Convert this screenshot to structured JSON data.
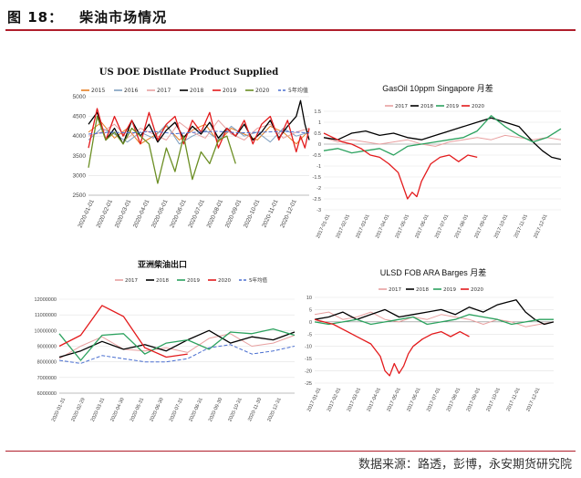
{
  "figure": {
    "number": "图 18：",
    "title": "柴油市场情况",
    "source": "数据来源：路透，彭博，永安期货研究院"
  },
  "chart_data": [
    {
      "type": "line",
      "title": "US DOE Distllate Product Supplied",
      "ylim": [
        2500,
        5000
      ],
      "yticks": [
        2500,
        3000,
        3500,
        4000,
        4500,
        5000
      ],
      "x_ticks": [
        "2020-01-01",
        "2020-02-01",
        "2020-03-01",
        "2020-04-01",
        "2020-05-01",
        "2020-06-01",
        "2020-07-01",
        "2020-08-01",
        "2020-09-01",
        "2020-10-01",
        "2020-11-01",
        "2020-12-01"
      ],
      "x_range": [
        1,
        52
      ],
      "grid": true,
      "legend": "top",
      "series": [
        {
          "name": "2015",
          "color": "#e67e22",
          "dash": false,
          "x": [
            1,
            4,
            7,
            10,
            13,
            16,
            19,
            22,
            25,
            28,
            31,
            34,
            37,
            40,
            43,
            46,
            49,
            52
          ],
          "values": [
            4100,
            4350,
            3950,
            4200,
            3800,
            4000,
            4250,
            3900,
            4150,
            4300,
            3850,
            4200,
            4050,
            3900,
            4250,
            4100,
            3800,
            4150
          ]
        },
        {
          "name": "2016",
          "color": "#7f9fbf",
          "dash": false,
          "x": [
            1,
            4,
            7,
            10,
            13,
            16,
            19,
            22,
            25,
            28,
            31,
            34,
            37,
            40,
            43,
            46,
            49,
            52
          ],
          "values": [
            3900,
            4200,
            4050,
            3850,
            4100,
            3950,
            4300,
            3800,
            4000,
            4150,
            3900,
            4250,
            4000,
            4100,
            3850,
            4200,
            4000,
            4100
          ]
        },
        {
          "name": "2017",
          "color": "#e8a0a0",
          "dash": false,
          "x": [
            1,
            4,
            7,
            10,
            13,
            16,
            19,
            22,
            25,
            28,
            31,
            34,
            37,
            40,
            43,
            46,
            49,
            52
          ],
          "values": [
            4000,
            4100,
            4300,
            3950,
            4200,
            4050,
            3900,
            4350,
            4100,
            3950,
            4400,
            4050,
            3900,
            4200,
            4300,
            3950,
            4100,
            4200
          ]
        },
        {
          "name": "2018",
          "color": "#000000",
          "dash": false,
          "x": [
            1,
            3,
            5,
            7,
            9,
            11,
            13,
            15,
            17,
            19,
            21,
            23,
            25,
            27,
            29,
            31,
            33,
            35,
            37,
            39,
            41,
            43,
            45,
            47,
            49,
            50,
            51,
            52
          ],
          "values": [
            4300,
            4600,
            3900,
            4200,
            3800,
            4400,
            4000,
            4300,
            3850,
            4150,
            4350,
            3950,
            4250,
            4050,
            4350,
            3950,
            4200,
            4000,
            4300,
            3900,
            4100,
            4400,
            3950,
            4250,
            4500,
            4900,
            4300,
            3900
          ]
        },
        {
          "name": "2019",
          "color": "#e31a1c",
          "dash": false,
          "x": [
            1,
            3,
            5,
            7,
            9,
            11,
            13,
            15,
            17,
            19,
            21,
            23,
            25,
            27,
            29,
            31,
            33,
            35,
            37,
            39,
            41,
            43,
            45,
            47,
            49,
            50,
            51,
            52
          ],
          "values": [
            3700,
            4700,
            3900,
            4500,
            4000,
            4400,
            3800,
            4600,
            3900,
            4300,
            4500,
            3800,
            4400,
            4100,
            4600,
            3700,
            4200,
            4000,
            4400,
            3800,
            4300,
            4500,
            3900,
            4400,
            3600,
            4000,
            3700,
            4200
          ]
        },
        {
          "name": "2020",
          "color": "#6b8e23",
          "dash": false,
          "x": [
            1,
            3,
            5,
            7,
            9,
            11,
            13,
            15,
            17,
            19,
            21,
            23,
            25,
            27,
            29,
            31,
            33,
            35
          ],
          "values": [
            3200,
            4500,
            3900,
            4100,
            3800,
            4200,
            4000,
            3800,
            2800,
            3700,
            3100,
            4000,
            2900,
            3600,
            3300,
            3900,
            4000,
            3300
          ]
        },
        {
          "name": "5年均值",
          "color": "#4a6fd0",
          "dash": true,
          "x": [
            1,
            6,
            11,
            16,
            21,
            26,
            31,
            36,
            41,
            46,
            52
          ],
          "values": [
            4050,
            4100,
            4080,
            4120,
            4060,
            4100,
            4120,
            4080,
            4100,
            4120,
            4080
          ]
        }
      ]
    },
    {
      "type": "line",
      "title_en": "GasOil 10ppm Singapore",
      "title_cn": "月差",
      "ylim": [
        -3,
        1.5
      ],
      "yticks": [
        -3,
        -2.5,
        -2,
        -1.5,
        -1,
        -0.5,
        0,
        0.5,
        1,
        1.5
      ],
      "x_ticks": [
        "2017-01-01",
        "2017-02-01",
        "2017-03-01",
        "2017-04-01",
        "2017-05-01",
        "2017-06-01",
        "2017-07-01",
        "2017-08-01",
        "2017-09-01",
        "2017-10-01",
        "2017-11-01",
        "2017-12-01"
      ],
      "x_range": [
        1,
        52
      ],
      "grid": true,
      "legend": "top",
      "series": [
        {
          "name": "2017",
          "color": "#e8a0a0",
          "x": [
            1,
            4,
            7,
            10,
            13,
            16,
            19,
            22,
            25,
            28,
            31,
            34,
            37,
            40,
            43,
            46,
            49,
            52
          ],
          "values": [
            0.3,
            0.1,
            0.2,
            0.1,
            0.0,
            0.1,
            0.2,
            0.0,
            -0.1,
            0.1,
            0.2,
            0.3,
            0.2,
            0.4,
            0.3,
            0.2,
            0.3,
            0.2
          ]
        },
        {
          "name": "2018",
          "color": "#000000",
          "x": [
            1,
            4,
            7,
            10,
            13,
            16,
            19,
            22,
            25,
            28,
            31,
            34,
            37,
            40,
            43,
            46,
            48,
            50,
            52
          ],
          "values": [
            0.3,
            0.2,
            0.5,
            0.6,
            0.4,
            0.5,
            0.3,
            0.2,
            0.4,
            0.6,
            0.8,
            1.0,
            1.2,
            1.0,
            0.8,
            0.1,
            -0.3,
            -0.6,
            -0.7
          ]
        },
        {
          "name": "2019",
          "color": "#2ca25f",
          "x": [
            1,
            4,
            7,
            10,
            13,
            16,
            19,
            22,
            25,
            28,
            31,
            34,
            37,
            40,
            43,
            46,
            49,
            52
          ],
          "values": [
            -0.3,
            -0.2,
            -0.4,
            -0.3,
            -0.2,
            -0.5,
            -0.1,
            0.0,
            0.1,
            0.2,
            0.3,
            0.6,
            1.3,
            0.8,
            0.4,
            0.1,
            0.3,
            0.7
          ]
        },
        {
          "name": "2020",
          "color": "#e31a1c",
          "x": [
            1,
            3,
            5,
            7,
            9,
            11,
            13,
            15,
            17,
            19,
            20,
            21,
            22,
            23,
            24,
            26,
            28,
            30,
            32,
            34
          ],
          "values": [
            0.5,
            0.3,
            0.1,
            0.0,
            -0.2,
            -0.5,
            -0.6,
            -0.9,
            -1.3,
            -2.5,
            -2.2,
            -2.4,
            -1.7,
            -1.3,
            -0.9,
            -0.6,
            -0.5,
            -0.8,
            -0.5,
            -0.6
          ]
        }
      ]
    },
    {
      "type": "line",
      "title": "亚洲柴油出口",
      "ylim": [
        6000000,
        12000000
      ],
      "yticks": [
        6000000,
        7000000,
        8000000,
        9000000,
        10000000,
        11000000,
        12000000
      ],
      "x_ticks": [
        "2020-01-31",
        "2020-02-29",
        "2020-03-31",
        "2020-04-30",
        "2020-05-31",
        "2020-06-30",
        "2020-07-31",
        "2020-08-31",
        "2020-09-30",
        "2020-10-31",
        "2020-11-30",
        "2020-12-31"
      ],
      "x_range": [
        1,
        12
      ],
      "grid": true,
      "legend": "top",
      "series": [
        {
          "name": "2017",
          "color": "#e8a0a0",
          "dash": false,
          "x": [
            1,
            2,
            3,
            4,
            5,
            6,
            7,
            8,
            9,
            10,
            11,
            12
          ],
          "values": [
            8200000,
            9000000,
            9600000,
            8800000,
            8700000,
            8900000,
            8600000,
            9500000,
            9800000,
            9000000,
            9200000,
            9700000
          ]
        },
        {
          "name": "2018",
          "color": "#000000",
          "dash": false,
          "x": [
            1,
            2,
            3,
            4,
            5,
            6,
            7,
            8,
            9,
            10,
            11,
            12
          ],
          "values": [
            8300000,
            8700000,
            9300000,
            8800000,
            9100000,
            8700000,
            9400000,
            10000000,
            9200000,
            9600000,
            9400000,
            9900000
          ]
        },
        {
          "name": "2019",
          "color": "#2ca25f",
          "dash": false,
          "x": [
            1,
            2,
            3,
            4,
            5,
            6,
            7,
            8,
            9,
            10,
            11,
            12
          ],
          "values": [
            9800000,
            8100000,
            9700000,
            9800000,
            8500000,
            9200000,
            9400000,
            8800000,
            9900000,
            9800000,
            10100000,
            9700000
          ]
        },
        {
          "name": "2020",
          "color": "#e31a1c",
          "dash": false,
          "x": [
            1,
            2,
            3,
            4,
            5,
            6,
            7
          ],
          "values": [
            9000000,
            9700000,
            11600000,
            10900000,
            8900000,
            8300000,
            8500000
          ]
        },
        {
          "name": "5年均值",
          "color": "#4a6fd0",
          "dash": true,
          "x": [
            1,
            2,
            3,
            4,
            5,
            6,
            7,
            8,
            9,
            10,
            11,
            12
          ],
          "values": [
            8100000,
            7900000,
            8400000,
            8200000,
            8000000,
            8000000,
            8200000,
            8900000,
            9100000,
            8500000,
            8700000,
            9000000
          ]
        }
      ]
    },
    {
      "type": "line",
      "title_en": "ULSD FOB ARA Barges",
      "title_cn": "月差",
      "ylim": [
        -25,
        10
      ],
      "yticks": [
        -25,
        -20,
        -15,
        -10,
        -5,
        0,
        5,
        10
      ],
      "x_ticks": [
        "2017-01-01",
        "2017-02-01",
        "2017-03-01",
        "2017-04-01",
        "2017-05-01",
        "2017-06-01",
        "2017-07-01",
        "2017-08-01",
        "2017-09-01",
        "2017-10-01",
        "2017-11-01",
        "2017-12-01"
      ],
      "x_range": [
        1,
        52
      ],
      "grid": true,
      "legend": "top",
      "series": [
        {
          "name": "2017",
          "color": "#e8a0a0",
          "x": [
            1,
            4,
            7,
            10,
            13,
            16,
            19,
            22,
            25,
            28,
            31,
            34,
            37,
            40,
            43,
            46,
            49,
            52
          ],
          "values": [
            3,
            4,
            1,
            2,
            4,
            1,
            0,
            2,
            1,
            3,
            2,
            1,
            -1,
            1,
            0,
            -2,
            -1,
            0
          ]
        },
        {
          "name": "2018",
          "color": "#000000",
          "x": [
            1,
            4,
            7,
            10,
            13,
            16,
            19,
            22,
            25,
            28,
            31,
            34,
            37,
            40,
            42,
            44,
            46,
            48,
            50,
            52
          ],
          "values": [
            1,
            2,
            4,
            1,
            3,
            5,
            2,
            3,
            4,
            5,
            3,
            6,
            4,
            7,
            8,
            9,
            4,
            1,
            -1,
            0
          ]
        },
        {
          "name": "2019",
          "color": "#2ca25f",
          "x": [
            1,
            4,
            7,
            10,
            13,
            16,
            19,
            22,
            25,
            28,
            31,
            34,
            37,
            40,
            43,
            46,
            49,
            52
          ],
          "values": [
            0,
            -1,
            0,
            1,
            -1,
            0,
            1,
            2,
            -1,
            0,
            1,
            3,
            2,
            1,
            -1,
            0,
            1,
            1
          ]
        },
        {
          "name": "2020",
          "color": "#e31a1c",
          "x": [
            1,
            3,
            5,
            7,
            9,
            11,
            13,
            15,
            16,
            17,
            18,
            19,
            20,
            21,
            22,
            24,
            26,
            28,
            30,
            32,
            34
          ],
          "values": [
            1,
            0,
            -1,
            -3,
            -5,
            -7,
            -9,
            -14,
            -20,
            -22,
            -17,
            -21,
            -18,
            -13,
            -10,
            -7,
            -5,
            -4,
            -6,
            -4,
            -6
          ]
        }
      ]
    }
  ]
}
